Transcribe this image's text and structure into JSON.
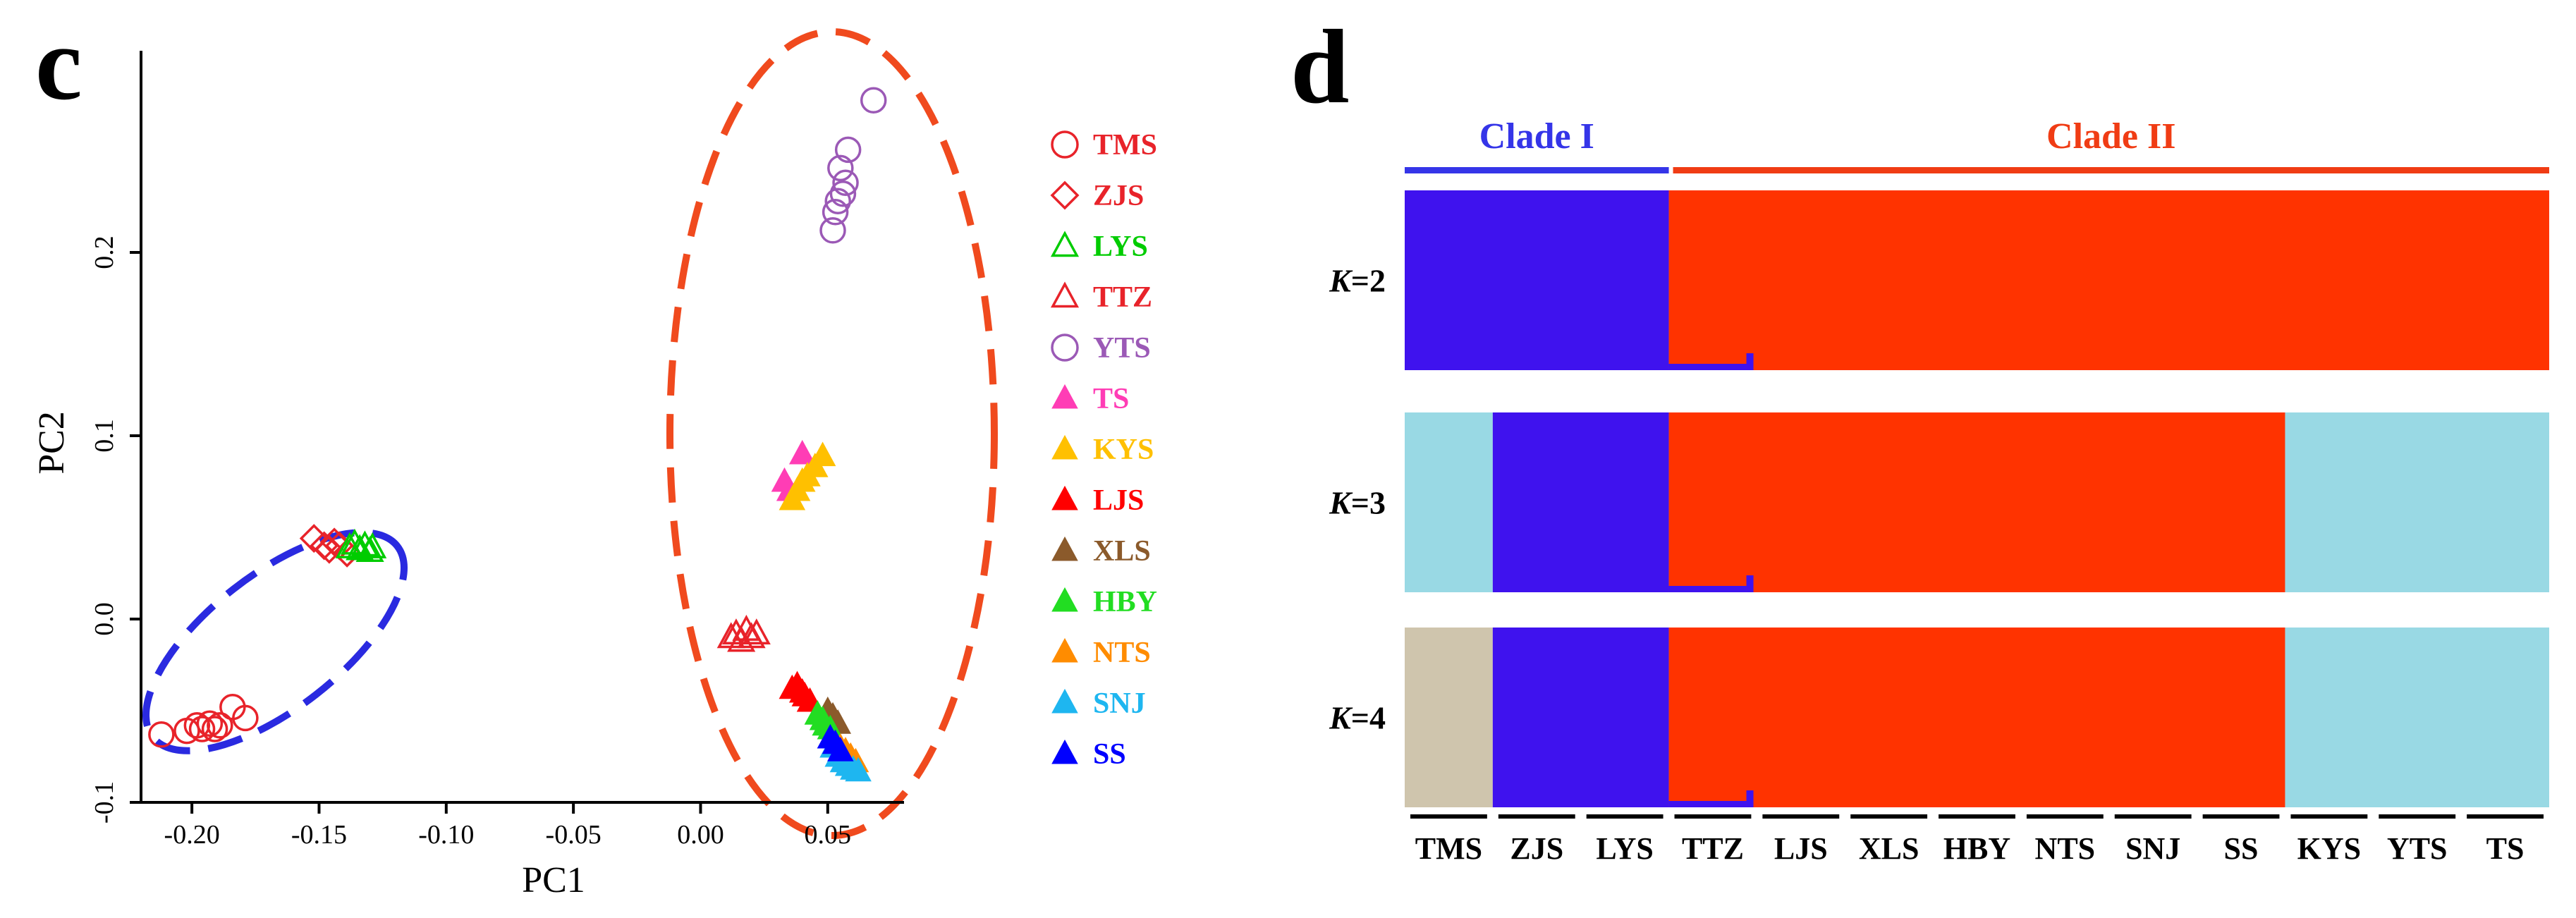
{
  "panel_c": {
    "letter": "c",
    "xlabel": "PC1",
    "ylabel": "PC2",
    "xticks": [
      -0.2,
      -0.15,
      -0.1,
      -0.05,
      0.0,
      0.05
    ],
    "xtick_labels": [
      "-0.20",
      "-0.15",
      "-0.10",
      "-0.05",
      "0.00",
      "0.05"
    ],
    "yticks": [
      -0.1,
      0.0,
      0.1,
      0.2
    ],
    "ytick_labels": [
      "-0.1",
      "0.0",
      "0.1",
      "0.2"
    ],
    "legend": [
      {
        "label": "TMS",
        "shape": "circle",
        "filled": false,
        "color": "#E8232A"
      },
      {
        "label": "ZJS",
        "shape": "diamond",
        "filled": false,
        "color": "#E8232A"
      },
      {
        "label": "LYS",
        "shape": "triangle",
        "filled": false,
        "color": "#00CC00"
      },
      {
        "label": "TTZ",
        "shape": "triangle",
        "filled": false,
        "color": "#E8232A"
      },
      {
        "label": "YTS",
        "shape": "circle",
        "filled": false,
        "color": "#9B59B6"
      },
      {
        "label": "TS",
        "shape": "triangle",
        "filled": true,
        "color": "#FF3DB5"
      },
      {
        "label": "KYS",
        "shape": "triangle",
        "filled": true,
        "color": "#FFC000"
      },
      {
        "label": "LJS",
        "shape": "triangle",
        "filled": true,
        "color": "#FF0000"
      },
      {
        "label": "XLS",
        "shape": "triangle",
        "filled": true,
        "color": "#8B5A2B"
      },
      {
        "label": "HBY",
        "shape": "triangle",
        "filled": true,
        "color": "#22DD22"
      },
      {
        "label": "NTS",
        "shape": "triangle",
        "filled": true,
        "color": "#FF8C00"
      },
      {
        "label": "SNJ",
        "shape": "triangle",
        "filled": true,
        "color": "#1EB6F0"
      },
      {
        "label": "SS",
        "shape": "triangle",
        "filled": true,
        "color": "#0000FF"
      }
    ],
    "ellipse_colors": {
      "clade_1": "#2A2AE0",
      "clade_2": "#F04A1E"
    }
  },
  "panel_d": {
    "letter": "d",
    "clade_labels": [
      {
        "label": "Clade I",
        "color": "#3535E8",
        "start": 0,
        "end": 3
      },
      {
        "label": "Clade II",
        "color": "#F03C14",
        "start": 3,
        "end": 13
      }
    ],
    "row_labels": [
      {
        "italic": "K",
        "rest": "=2"
      },
      {
        "italic": "K",
        "rest": "=3"
      },
      {
        "italic": "K",
        "rest": "=4"
      }
    ],
    "populations": [
      "TMS",
      "ZJS",
      "LYS",
      "TTZ",
      "LJS",
      "XLS",
      "HBY",
      "NTS",
      "SNJ",
      "SS",
      "KYS",
      "YTS",
      "TS"
    ],
    "population_widths": [
      1,
      1,
      1,
      1,
      1,
      1,
      1,
      1,
      1,
      1,
      1,
      1,
      1
    ]
  },
  "chart_data": [
    {
      "type": "scatter",
      "title": "",
      "xlabel": "PC1",
      "ylabel": "PC2",
      "xlim": [
        -0.22,
        0.08
      ],
      "ylim": [
        -0.1,
        0.31
      ],
      "grid": false,
      "legend_position": "right",
      "series": [
        {
          "name": "TMS",
          "points": [
            [
              -0.212,
              -0.063
            ],
            [
              -0.202,
              -0.061
            ],
            [
              -0.198,
              -0.058
            ],
            [
              -0.196,
              -0.06
            ],
            [
              -0.193,
              -0.057
            ],
            [
              -0.191,
              -0.06
            ],
            [
              -0.189,
              -0.058
            ],
            [
              -0.184,
              -0.048
            ],
            [
              -0.179,
              -0.054
            ]
          ]
        },
        {
          "name": "ZJS",
          "points": [
            [
              -0.152,
              0.044
            ],
            [
              -0.148,
              0.04
            ],
            [
              -0.146,
              0.038
            ],
            [
              -0.144,
              0.042
            ],
            [
              -0.142,
              0.04
            ],
            [
              -0.139,
              0.036
            ]
          ]
        },
        {
          "name": "LYS",
          "points": [
            [
              -0.138,
              0.039
            ],
            [
              -0.136,
              0.041
            ],
            [
              -0.134,
              0.038
            ],
            [
              -0.132,
              0.04
            ],
            [
              -0.13,
              0.037
            ],
            [
              -0.129,
              0.039
            ]
          ]
        },
        {
          "name": "TTZ",
          "points": [
            [
              0.012,
              -0.01
            ],
            [
              0.014,
              -0.008
            ],
            [
              0.016,
              -0.012
            ],
            [
              0.018,
              -0.006
            ],
            [
              0.02,
              -0.01
            ],
            [
              0.022,
              -0.008
            ]
          ]
        },
        {
          "name": "YTS",
          "points": [
            [
              0.068,
              0.283
            ],
            [
              0.058,
              0.256
            ],
            [
              0.055,
              0.246
            ],
            [
              0.057,
              0.238
            ],
            [
              0.056,
              0.232
            ],
            [
              0.054,
              0.228
            ],
            [
              0.053,
              0.222
            ],
            [
              0.052,
              0.212
            ]
          ]
        },
        {
          "name": "TS",
          "points": [
            [
              0.033,
              0.075
            ],
            [
              0.035,
              0.07
            ],
            [
              0.04,
              0.09
            ]
          ]
        },
        {
          "name": "KYS",
          "points": [
            [
              0.036,
              0.065
            ],
            [
              0.038,
              0.07
            ],
            [
              0.04,
              0.075
            ],
            [
              0.042,
              0.078
            ],
            [
              0.045,
              0.083
            ],
            [
              0.048,
              0.089
            ]
          ]
        },
        {
          "name": "LJS",
          "points": [
            [
              0.036,
              -0.038
            ],
            [
              0.038,
              -0.036
            ],
            [
              0.04,
              -0.04
            ],
            [
              0.041,
              -0.042
            ],
            [
              0.043,
              -0.045
            ]
          ]
        },
        {
          "name": "XLS",
          "points": [
            [
              0.05,
              -0.05
            ],
            [
              0.052,
              -0.053
            ],
            [
              0.054,
              -0.057
            ]
          ]
        },
        {
          "name": "HBY",
          "points": [
            [
              0.046,
              -0.052
            ],
            [
              0.048,
              -0.055
            ],
            [
              0.049,
              -0.058
            ],
            [
              0.051,
              -0.06
            ]
          ]
        },
        {
          "name": "NTS",
          "points": [
            [
              0.055,
              -0.07
            ],
            [
              0.057,
              -0.072
            ],
            [
              0.059,
              -0.075
            ],
            [
              0.061,
              -0.078
            ]
          ]
        },
        {
          "name": "SNJ",
          "points": [
            [
              0.052,
              -0.07
            ],
            [
              0.054,
              -0.075
            ],
            [
              0.056,
              -0.078
            ],
            [
              0.058,
              -0.08
            ],
            [
              0.06,
              -0.082
            ],
            [
              0.062,
              -0.083
            ]
          ]
        },
        {
          "name": "SS",
          "points": [
            [
              0.051,
              -0.065
            ],
            [
              0.053,
              -0.068
            ],
            [
              0.055,
              -0.072
            ]
          ]
        }
      ]
    },
    {
      "type": "bar",
      "subtype": "stacked-admixture",
      "title": "",
      "categories": [
        "TMS",
        "ZJS",
        "LYS",
        "TTZ",
        "LJS",
        "XLS",
        "HBY",
        "NTS",
        "SNJ",
        "SS",
        "KYS",
        "YTS",
        "TS"
      ],
      "rows": [
        {
          "label": "K=2",
          "segments": [
            {
              "color": "#3F12EE",
              "start": 0,
              "end": 3
            },
            {
              "color": "#FF3300",
              "start": 3,
              "end": 13
            }
          ]
        },
        {
          "label": "K=3",
          "segments": [
            {
              "color": "#99D9E4",
              "start": 0,
              "end": 1
            },
            {
              "color": "#3F12EE",
              "start": 1,
              "end": 3
            },
            {
              "color": "#FF3300",
              "start": 3,
              "end": 10
            },
            {
              "color": "#99D9E4",
              "start": 10,
              "end": 13
            }
          ]
        },
        {
          "label": "K=4",
          "segments": [
            {
              "color": "#CFC5AD",
              "start": 0,
              "end": 1
            },
            {
              "color": "#3F12EE",
              "start": 1,
              "end": 3
            },
            {
              "color": "#FF3300",
              "start": 3,
              "end": 10
            },
            {
              "color": "#99D9E4",
              "start": 10,
              "end": 13
            }
          ]
        }
      ]
    }
  ]
}
